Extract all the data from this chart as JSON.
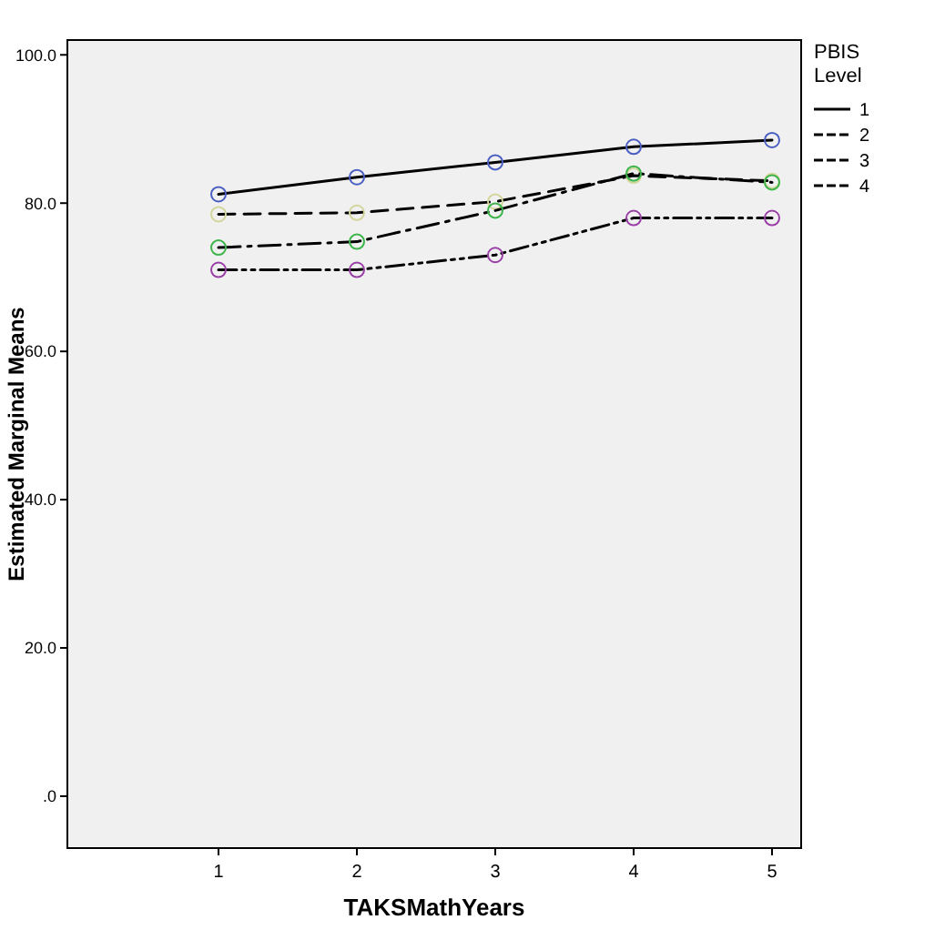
{
  "chart_data": {
    "type": "line",
    "xlabel": "TAKSMathYears",
    "ylabel": "Estimated Marginal Means",
    "legend_title": "PBIS Level",
    "legend": "right",
    "marker": "circle",
    "categories": [
      "1",
      "2",
      "3",
      "4",
      "5"
    ],
    "ylim": [
      -7,
      102
    ],
    "yticks": [
      {
        "value": 0,
        "label": ".0"
      },
      {
        "value": 20,
        "label": "20.0"
      },
      {
        "value": 40,
        "label": "40.0"
      },
      {
        "value": 60,
        "label": "60.0"
      },
      {
        "value": 80,
        "label": "80.0"
      },
      {
        "value": 100,
        "label": "100.0"
      }
    ],
    "series": [
      {
        "name": "1",
        "color": "#000000",
        "colors": [
          "#4a5fc1",
          "#4a5fc1",
          "#4a5fc1",
          "#4a5fc1",
          "#4a5fc1"
        ],
        "line_style": "solid",
        "values": [
          81.2,
          83.5,
          85.5,
          87.6,
          88.5
        ]
      },
      {
        "name": "2",
        "color": "#000000",
        "colors": [
          "#d2d69a",
          "#d2d69a",
          "#d2d69a",
          "#d2d69a",
          "#d2d69a"
        ],
        "line_style": "dashed",
        "values": [
          78.5,
          78.7,
          80.2,
          83.7,
          83
        ]
      },
      {
        "name": "3",
        "color": "#000000",
        "colors": [
          "#3cb44a",
          "#3cb44a",
          "#3cb44a",
          "#3cb44a",
          "#3cb44a"
        ],
        "line_style": "dashed",
        "values": [
          74,
          74.8,
          79,
          84,
          82.8
        ]
      },
      {
        "name": "4",
        "color": "#000000",
        "colors": [
          "#9a3fa6",
          "#9a3fa6",
          "#9a3fa6",
          "#9a3fa6",
          "#9a3fa6"
        ],
        "line_style": "dashed",
        "values": [
          71,
          71,
          73,
          78,
          78
        ]
      }
    ]
  }
}
